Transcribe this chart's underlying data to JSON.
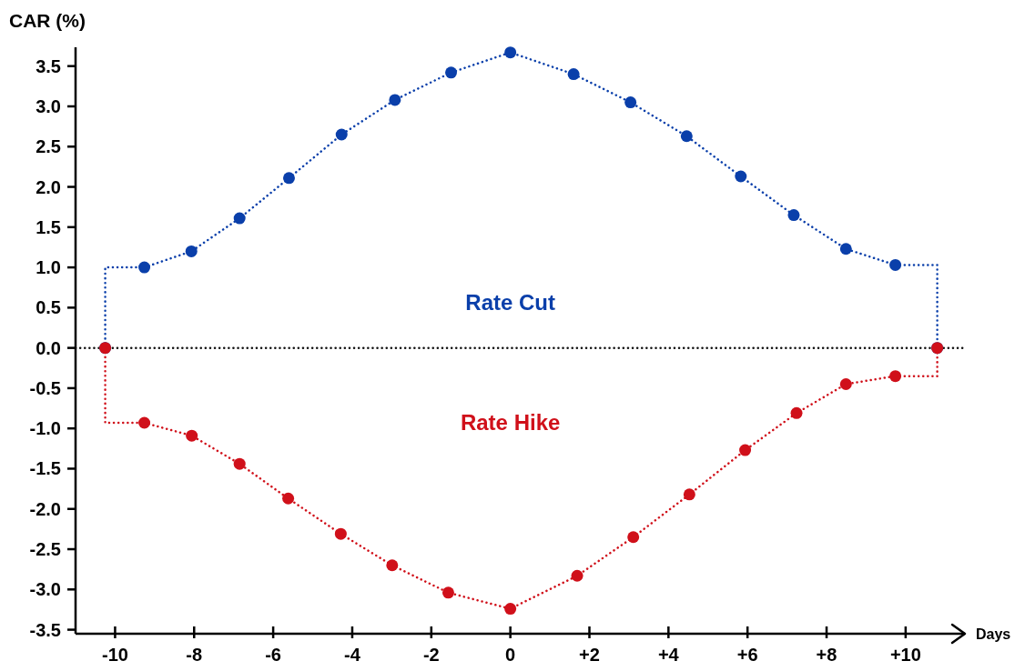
{
  "chart_data": {
    "type": "line",
    "ylabel": "CAR (%)",
    "xlabel": "Days",
    "xlim": [
      -11,
      11.5
    ],
    "xticks": [
      -10,
      -8,
      -6,
      -4,
      -2,
      0,
      {
        "value": 2,
        "label": "+2"
      },
      {
        "value": 4,
        "label": "+4"
      },
      {
        "value": 6,
        "label": "+6"
      },
      {
        "value": 8,
        "label": "+8"
      },
      {
        "value": 10,
        "label": "+10"
      }
    ],
    "ylim": [
      -3.55,
      3.7
    ],
    "yticks": [
      {
        "value": -3.5,
        "label": "-3.5"
      },
      {
        "value": -3,
        "label": "-3.0"
      },
      {
        "value": -2.5,
        "label": "-2.5"
      },
      {
        "value": -2,
        "label": "-2.0"
      },
      {
        "value": -1.5,
        "label": "-1.5"
      },
      {
        "value": -1,
        "label": "-1.0"
      },
      {
        "value": -0.5,
        "label": "-0.5"
      },
      {
        "value": 0,
        "label": "0.0"
      },
      {
        "value": 0.5,
        "label": "0.5"
      },
      {
        "value": 1,
        "label": "1.0"
      },
      {
        "value": 1.5,
        "label": "1.5"
      },
      {
        "value": 2,
        "label": "2.0"
      },
      {
        "value": 2.5,
        "label": "2.5"
      },
      {
        "value": 3,
        "label": "3.0"
      },
      {
        "value": 3.5,
        "label": "3.5"
      }
    ],
    "grid": false,
    "line_style": "dotted",
    "marker": "circle",
    "ref_lines": [
      {
        "axis": "y",
        "value": 0,
        "color": "#111111",
        "line_style": "dotted"
      }
    ],
    "series": [
      {
        "marker": "none",
        "color": "#0a3faa",
        "x": [
          -10.25,
          -10.25,
          -9.26
        ],
        "values": [
          0,
          1.0,
          1.0
        ]
      },
      {
        "marker": "none",
        "color": "#0a3faa",
        "x": [
          9.74,
          10.8,
          10.8
        ],
        "values": [
          1.03,
          1.03,
          0
        ]
      },
      {
        "name": "Rate Cut",
        "color": "#0a3faa",
        "x": [
          -9.26,
          -8.07,
          -6.85,
          -5.6,
          -4.27,
          -2.92,
          -1.5,
          0,
          1.6,
          3.04,
          4.46,
          5.83,
          7.17,
          8.49,
          9.74
        ],
        "values": [
          1.0,
          1.2,
          1.61,
          2.11,
          2.65,
          3.08,
          3.42,
          3.67,
          3.4,
          3.05,
          2.63,
          2.13,
          1.65,
          1.23,
          1.03
        ]
      },
      {
        "type": "scatter",
        "color": "#0a3faa",
        "x": [
          -10.25,
          10.8
        ],
        "values": [
          0,
          0
        ]
      },
      {
        "marker": "none",
        "color": "#d0101a",
        "x": [
          -10.25,
          -10.25,
          -9.26
        ],
        "values": [
          0,
          -0.93,
          -0.93
        ]
      },
      {
        "marker": "none",
        "color": "#d0101a",
        "x": [
          9.74,
          10.8,
          10.8
        ],
        "values": [
          -0.35,
          -0.35,
          0
        ]
      },
      {
        "name": "Rate Hike",
        "color": "#d0101a",
        "x": [
          -9.26,
          -8.06,
          -6.85,
          -5.62,
          -4.29,
          -2.99,
          -1.57,
          0,
          1.69,
          3.11,
          4.53,
          5.94,
          7.24,
          8.49,
          9.74
        ],
        "values": [
          -0.93,
          -1.09,
          -1.44,
          -1.87,
          -2.31,
          -2.7,
          -3.04,
          -3.24,
          -2.83,
          -2.35,
          -1.82,
          -1.27,
          -0.81,
          -0.45,
          -0.35
        ]
      },
      {
        "type": "scatter",
        "color": "#d0101a",
        "x": [
          -10.25,
          10.8
        ],
        "values": [
          0,
          0
        ]
      }
    ]
  }
}
